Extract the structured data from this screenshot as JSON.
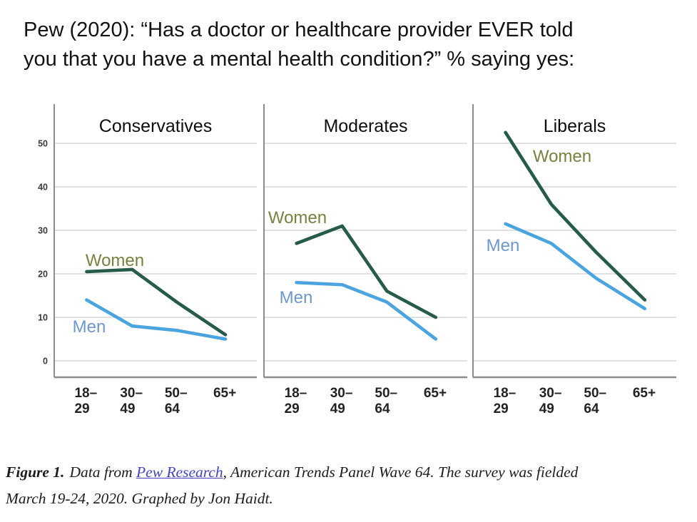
{
  "header": {
    "title_lines": [
      "Pew (2020): “Has a doctor or healthcare provider EVER told",
      "you that you have a mental health condition?” % saying yes:"
    ]
  },
  "chart_data": {
    "type": "line",
    "categories": [
      "18–29",
      "30–49",
      "50–64",
      "65+"
    ],
    "category_tick_lines": [
      [
        "18–",
        "29"
      ],
      [
        "30–",
        "49"
      ],
      [
        "50–",
        "64"
      ],
      [
        "65+"
      ]
    ],
    "yticks": [
      0,
      10,
      20,
      30,
      40,
      50
    ],
    "ylim": [
      0,
      59
    ],
    "grid": true,
    "legend": "inline-labels",
    "panels": [
      {
        "title": "Conservatives",
        "series": [
          {
            "name": "Women",
            "values": [
              20.5,
              21,
              13.5,
              6
            ]
          },
          {
            "name": "Men",
            "values": [
              14,
              8,
              7,
              5
            ]
          }
        ]
      },
      {
        "title": "Moderates",
        "series": [
          {
            "name": "Women",
            "values": [
              27,
              31,
              16,
              10
            ]
          },
          {
            "name": "Men",
            "values": [
              18,
              17.5,
              13.5,
              5
            ]
          }
        ]
      },
      {
        "title": "Liberals",
        "series": [
          {
            "name": "Women",
            "values": [
              52.5,
              36,
              25,
              14
            ]
          },
          {
            "name": "Men",
            "values": [
              31.5,
              27,
              19,
              12
            ]
          }
        ]
      }
    ],
    "colors": {
      "women_line": "#265a4a",
      "men_line": "#4aa4de",
      "women_label": "#78813f",
      "men_label": "#6d97cd",
      "grid": "#d7d7d7",
      "axis": "#8c8c8c",
      "x_tick_text": "#222222",
      "y_tick_text": "#3a3a3a",
      "panel_title_text": "#0d0d0d"
    }
  },
  "caption": {
    "figure_label": "Figure 1.",
    "line1_pre": "Data from ",
    "link_text": "Pew Research",
    "line1_post": ", American Trends Panel Wave 64. The survey was fielded",
    "line2": "March 19-24, 2020. Graphed by Jon Haidt."
  }
}
